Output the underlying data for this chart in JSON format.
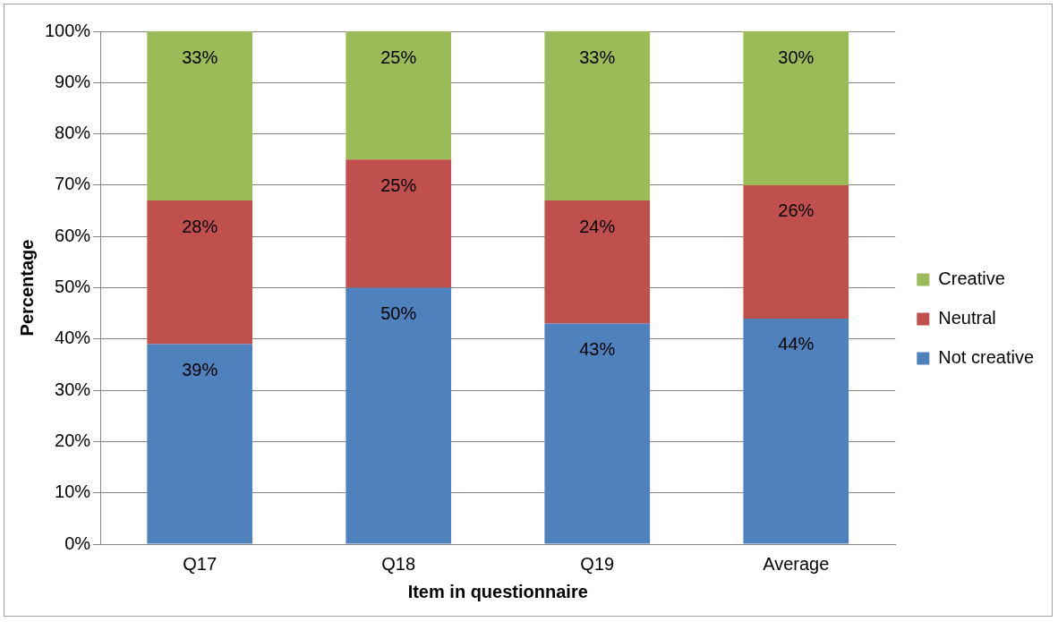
{
  "chart_data": {
    "type": "bar",
    "stacked": true,
    "xlabel": "Item in questionnaire",
    "ylabel": "Percentage",
    "categories": [
      "Q17",
      "Q18",
      "Q19",
      "Average"
    ],
    "series": [
      {
        "name": "Not creative",
        "color": "#4f81bd",
        "values": [
          39,
          50,
          43,
          44
        ],
        "value_labels": [
          "39%",
          "50%",
          "43%",
          "44%"
        ]
      },
      {
        "name": "Neutral",
        "color": "#c0504d",
        "values": [
          28,
          25,
          24,
          26
        ],
        "value_labels": [
          "28%",
          "25%",
          "24%",
          "26%"
        ]
      },
      {
        "name": "Creative",
        "color": "#9bbb59",
        "values": [
          33,
          25,
          33,
          30
        ],
        "value_labels": [
          "33%",
          "25%",
          "33%",
          "30%"
        ]
      }
    ],
    "ylim": [
      0,
      100
    ],
    "yticks": [
      {
        "value": 0,
        "label": "0%"
      },
      {
        "value": 10,
        "label": "10%"
      },
      {
        "value": 20,
        "label": "20%"
      },
      {
        "value": 30,
        "label": "30%"
      },
      {
        "value": 40,
        "label": "40%"
      },
      {
        "value": 50,
        "label": "50%"
      },
      {
        "value": 60,
        "label": "60%"
      },
      {
        "value": 70,
        "label": "70%"
      },
      {
        "value": 80,
        "label": "80%"
      },
      {
        "value": 90,
        "label": "90%"
      },
      {
        "value": 100,
        "label": "100%"
      }
    ],
    "grid": "y",
    "legend": "right"
  }
}
